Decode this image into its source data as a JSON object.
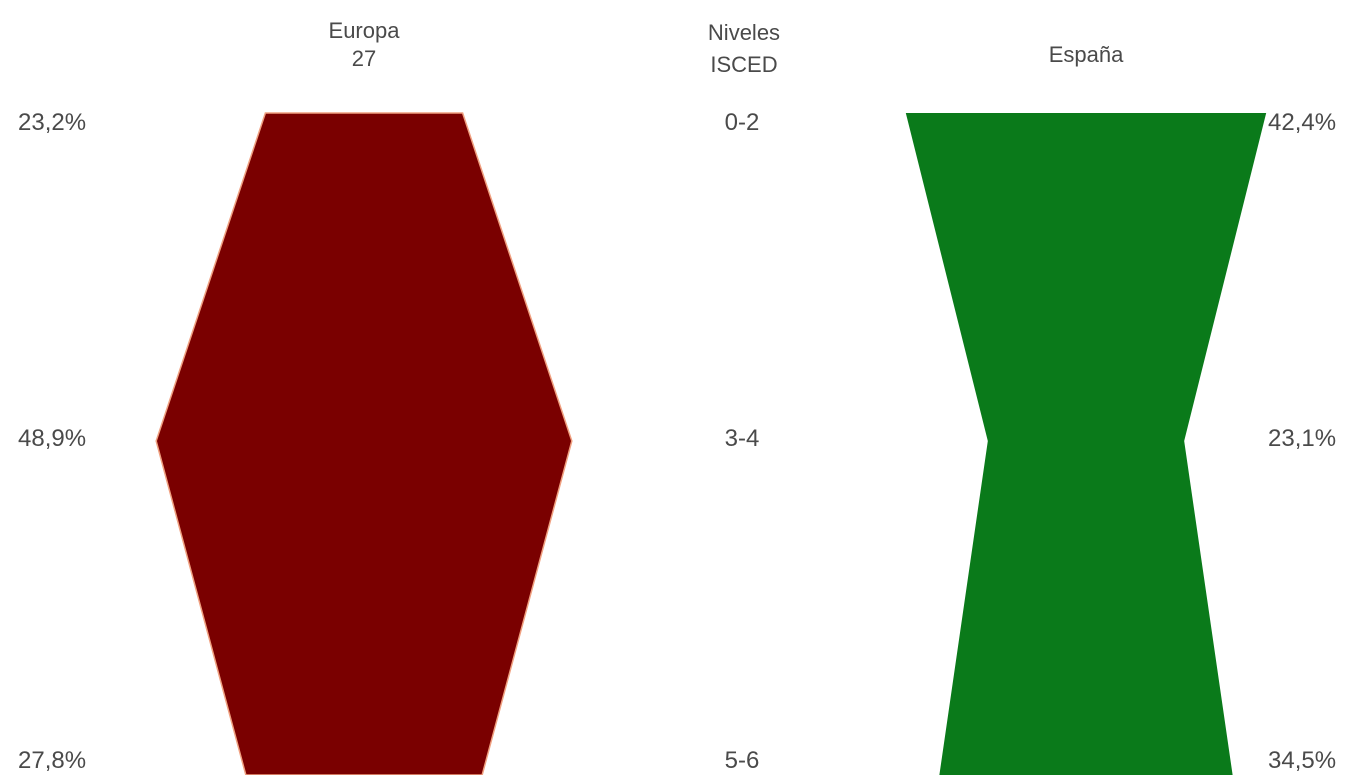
{
  "chart_data": {
    "type": "other",
    "levels_header": [
      "Niveles",
      "ISCED"
    ],
    "levels": [
      "0-2",
      "3-4",
      "5-6"
    ],
    "series": [
      {
        "name_lines": [
          "Europa",
          "27"
        ],
        "color": "#7a0000",
        "values": [
          23.2,
          48.9,
          27.8
        ],
        "labels": [
          "23,2%",
          "48,9%",
          "27,8%"
        ]
      },
      {
        "name_lines": [
          "España"
        ],
        "color": "#0a7a1a",
        "values": [
          42.4,
          23.1,
          34.5
        ],
        "labels": [
          "42,4%",
          "23,1%",
          "34,5%"
        ]
      }
    ]
  }
}
